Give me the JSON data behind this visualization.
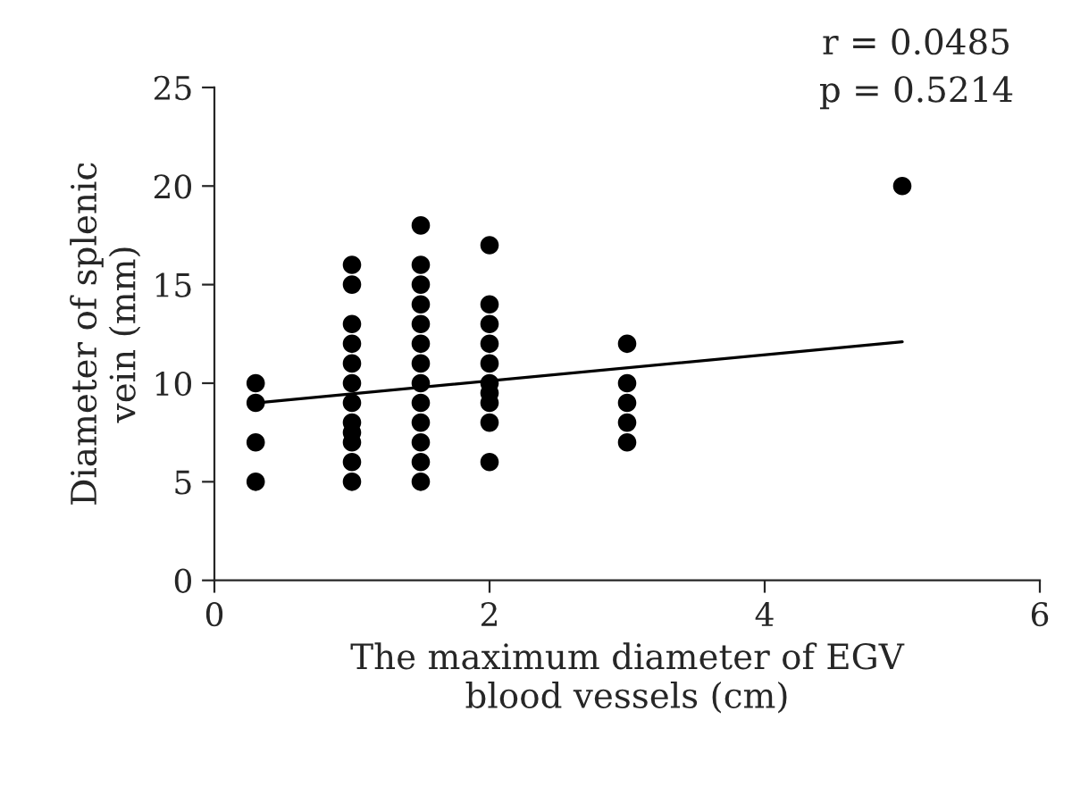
{
  "chart_data": {
    "type": "scatter",
    "xlabel": "The maximum diameter of EGV\nblood vessels (cm)",
    "ylabel": "Diameter of splenic\nvein (mm)",
    "xlim": [
      0,
      6
    ],
    "xticks": [
      0,
      2,
      4,
      6
    ],
    "ylim": [
      0,
      25
    ],
    "yticks": [
      0,
      5,
      10,
      15,
      20,
      25
    ],
    "grid": false,
    "legend": false,
    "marker": "circle",
    "series": [
      {
        "color": "#000000",
        "x": [
          0.3,
          0.3,
          0.3,
          0.3,
          1,
          1,
          1,
          1,
          1,
          1,
          1,
          1,
          1,
          1,
          1,
          1,
          1.5,
          1.5,
          1.5,
          1.5,
          1.5,
          1.5,
          1.5,
          1.5,
          1.5,
          1.5,
          1.5,
          1.5,
          1.5,
          2,
          2,
          2,
          2,
          2,
          2,
          2,
          2,
          2,
          2,
          3,
          3,
          3,
          3,
          3,
          5
        ],
        "values": [
          10,
          9,
          7,
          5,
          16,
          15,
          13,
          12,
          11,
          10,
          9,
          8,
          7.5,
          7,
          6,
          5,
          18,
          16,
          15,
          14,
          13,
          12,
          11,
          10,
          9,
          8,
          7,
          6,
          5,
          17,
          14,
          13,
          12,
          11,
          10,
          9.5,
          9,
          8,
          6,
          12,
          10,
          9,
          8,
          7,
          20
        ]
      },
      {
        "type": "line",
        "color": "#000000",
        "marker": "none",
        "line_style": "solid",
        "x": [
          0.3,
          5
        ],
        "values": [
          9.0,
          12.1
        ]
      }
    ],
    "annotations": [
      "r = 0.0485",
      "p = 0.5214"
    ]
  }
}
